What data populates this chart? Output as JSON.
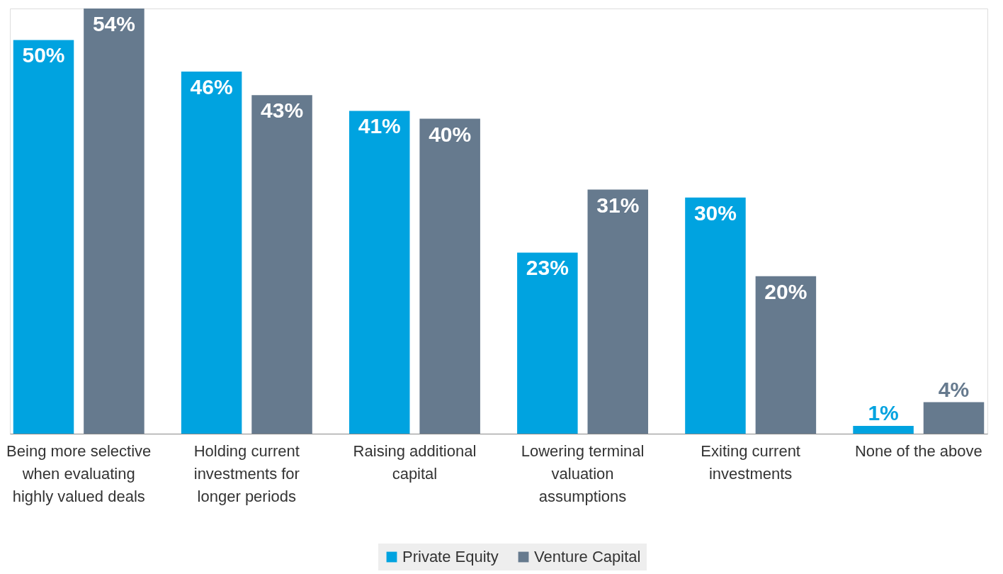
{
  "chart_data": {
    "type": "bar",
    "categories": [
      "Being more selective when evaluating highly valued deals",
      "Holding current investments for longer periods",
      "Raising additional capital",
      "Lowering terminal valuation assumptions",
      "Exiting current investments",
      "None of the above"
    ],
    "series": [
      {
        "name": "Private Equity",
        "color": "#00a3e0",
        "values": [
          50,
          46,
          41,
          23,
          30,
          1
        ],
        "value_labels": [
          "50%",
          "46%",
          "41%",
          "23%",
          "30%",
          "1%"
        ]
      },
      {
        "name": "Venture Capital",
        "color": "#667a8e",
        "values": [
          54,
          43,
          40,
          31,
          20,
          4
        ],
        "value_labels": [
          "54%",
          "43%",
          "40%",
          "31%",
          "20%",
          "4%"
        ]
      }
    ],
    "legend": "bottom",
    "grid": false
  }
}
